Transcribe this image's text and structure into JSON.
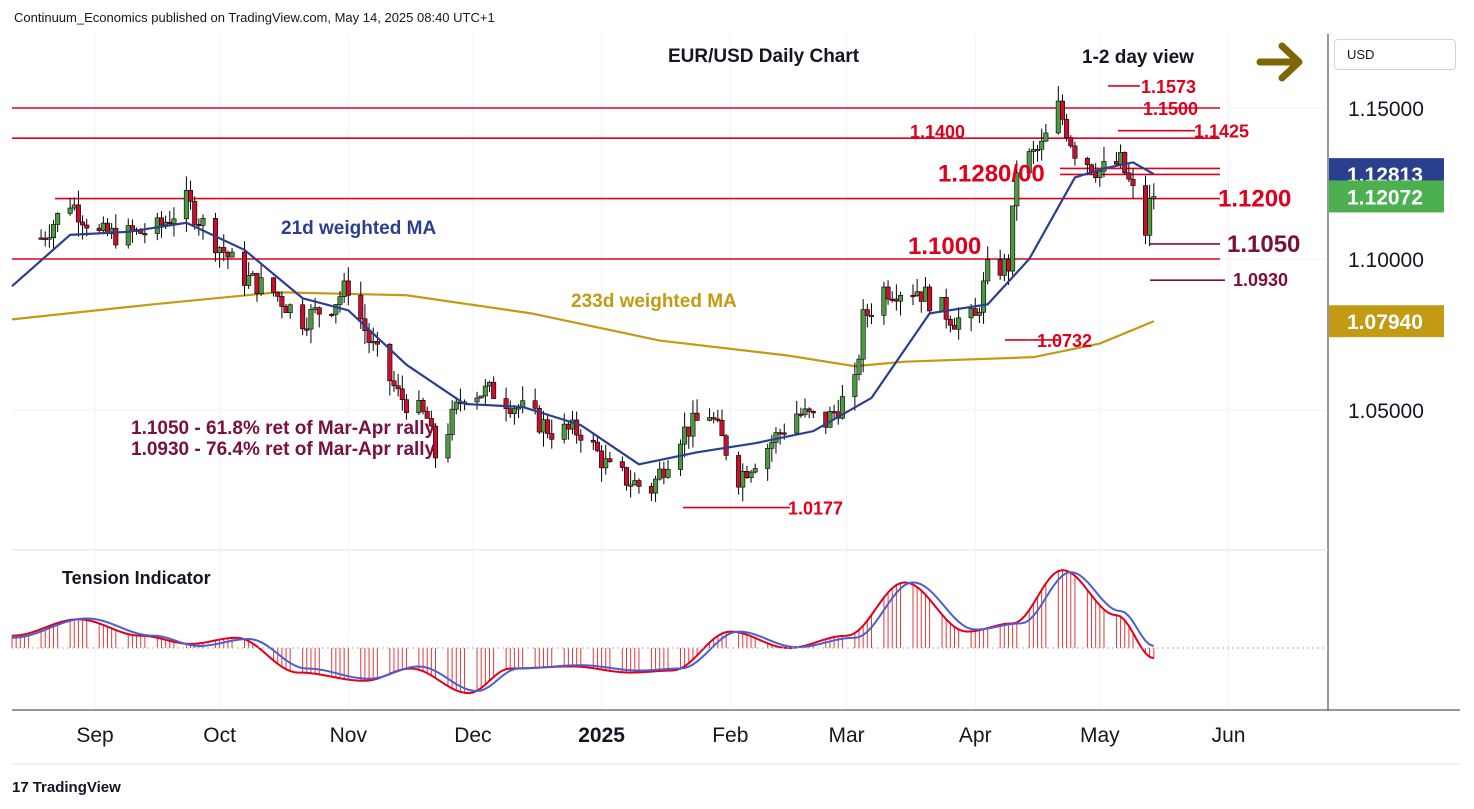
{
  "header": {
    "attribution": "Continuum_Economics published on TradingView.com, May 14, 2025 08:40 UTC+1"
  },
  "footer": {
    "brand": "TradingView",
    "logo_mark": "17"
  },
  "currency_button": "USD",
  "colors": {
    "resistance": "#e0001b",
    "support": "#7a1040",
    "ma21": "#2b3f8f",
    "ma233": "#c39a14",
    "up_candle": "#4c9a40",
    "down_candle": "#c8102e",
    "arrow": "#7d6508",
    "badge_ma21": "#2b3f8f",
    "badge_last": "#4caf50",
    "badge_ma233": "#c39a14"
  },
  "chart_data": {
    "type": "candlestick",
    "title": "EUR/USD Daily Chart",
    "view": "1-2 day view",
    "view_direction": "sideways (right arrow)",
    "y_axis": {
      "scale": "price",
      "ticks": [
        "1.15000",
        "1.10000",
        "1.05000"
      ],
      "range": [
        1.0,
        1.16
      ]
    },
    "x_axis": {
      "ticks": [
        "Sep",
        "Oct",
        "Nov",
        "Dec",
        "2025",
        "Feb",
        "Mar",
        "Apr",
        "May",
        "Jun"
      ]
    },
    "price_badges": [
      {
        "label": "1.12813",
        "series": "21d weighted MA"
      },
      {
        "label": "1.12072",
        "series": "last price"
      },
      {
        "label": "1.07940",
        "series": "233d weighted MA"
      }
    ],
    "horizontal_levels": [
      {
        "value": 1.15,
        "kind": "resistance"
      },
      {
        "value": 1.14,
        "kind": "resistance"
      },
      {
        "value": 1.128,
        "kind": "resistance"
      },
      {
        "value": 1.13,
        "kind": "resistance"
      },
      {
        "value": 1.12,
        "kind": "resistance"
      },
      {
        "value": 1.1,
        "kind": "resistance"
      },
      {
        "value": 1.105,
        "kind": "support"
      },
      {
        "value": 1.093,
        "kind": "support"
      },
      {
        "value": 1.0732,
        "kind": "support"
      },
      {
        "value": 1.0177,
        "kind": "support"
      },
      {
        "value": 1.1573,
        "kind": "resistance"
      },
      {
        "value": 1.1425,
        "kind": "resistance"
      }
    ],
    "level_labels": [
      {
        "text": "1.1573",
        "value": 1.1573,
        "color": "red"
      },
      {
        "text": "1.1500",
        "value": 1.15,
        "color": "red"
      },
      {
        "text": "1.1425",
        "value": 1.1425,
        "color": "red"
      },
      {
        "text": "1.1400",
        "value": 1.14,
        "color": "red"
      },
      {
        "text": "1.1280/00",
        "value": 1.129,
        "color": "red",
        "size": "large"
      },
      {
        "text": "1.1200",
        "value": 1.12,
        "color": "red",
        "size": "large"
      },
      {
        "text": "1.1000",
        "value": 1.1,
        "color": "red",
        "size": "large"
      },
      {
        "text": "1.1050",
        "value": 1.105,
        "color": "maroon",
        "size": "large"
      },
      {
        "text": "1.0930",
        "value": 1.093,
        "color": "maroon"
      },
      {
        "text": "1.0732",
        "value": 1.0732,
        "color": "red"
      },
      {
        "text": "1.0177",
        "value": 1.0177,
        "color": "red"
      }
    ],
    "annotations": [
      "21d weighted MA",
      "233d weighted MA",
      "1.1050 - 61.8% ret of Mar-Apr rally",
      "1.0930 - 76.4% ret of Mar-Apr rally"
    ],
    "price_series": {
      "name": "EUR/USD",
      "anchors": [
        [
          "2024-08-19",
          1.107
        ],
        [
          "2024-08-26",
          1.119
        ],
        [
          "2024-09-02",
          1.108
        ],
        [
          "2024-09-09",
          1.108
        ],
        [
          "2024-09-16",
          1.11
        ],
        [
          "2024-09-23",
          1.119
        ],
        [
          "2024-09-30",
          1.106
        ],
        [
          "2024-10-07",
          1.094
        ],
        [
          "2024-10-14",
          1.089
        ],
        [
          "2024-10-21",
          1.08
        ],
        [
          "2024-10-28",
          1.085
        ],
        [
          "2024-11-01",
          1.091
        ],
        [
          "2024-11-06",
          1.073
        ],
        [
          "2024-11-13",
          1.055
        ],
        [
          "2024-11-20",
          1.047
        ],
        [
          "2024-11-22",
          1.035
        ],
        [
          "2024-11-29",
          1.056
        ],
        [
          "2024-12-06",
          1.056
        ],
        [
          "2024-12-13",
          1.05
        ],
        [
          "2024-12-20",
          1.043
        ],
        [
          "2024-12-27",
          1.043
        ],
        [
          "2025-01-03",
          1.03
        ],
        [
          "2025-01-10",
          1.025
        ],
        [
          "2025-01-13",
          1.024
        ],
        [
          "2025-01-20",
          1.042
        ],
        [
          "2025-01-27",
          1.049
        ],
        [
          "2025-02-03",
          1.028
        ],
        [
          "2025-02-10",
          1.038
        ],
        [
          "2025-02-17",
          1.049
        ],
        [
          "2025-02-24",
          1.046
        ],
        [
          "2025-03-03",
          1.058
        ],
        [
          "2025-03-05",
          1.08
        ],
        [
          "2025-03-10",
          1.09
        ],
        [
          "2025-03-18",
          1.09
        ],
        [
          "2025-03-27",
          1.08
        ],
        [
          "2025-04-01",
          1.08
        ],
        [
          "2025-04-04",
          1.096
        ],
        [
          "2025-04-09",
          1.098
        ],
        [
          "2025-04-11",
          1.13
        ],
        [
          "2025-04-17",
          1.137
        ],
        [
          "2025-04-21",
          1.15
        ],
        [
          "2025-04-25",
          1.136
        ],
        [
          "2025-05-01",
          1.129
        ],
        [
          "2025-05-06",
          1.132
        ],
        [
          "2025-05-09",
          1.122
        ],
        [
          "2025-05-12",
          1.109
        ],
        [
          "2025-05-13",
          1.118
        ],
        [
          "2025-05-14",
          1.1207
        ]
      ]
    },
    "series": [
      {
        "name": "21d weighted MA",
        "values": [
          [
            "2024-08-12",
            1.091
          ],
          [
            "2024-08-26",
            1.108
          ],
          [
            "2024-09-09",
            1.109
          ],
          [
            "2024-09-23",
            1.112
          ],
          [
            "2024-10-07",
            1.103
          ],
          [
            "2024-10-21",
            1.087
          ],
          [
            "2024-11-01",
            1.083
          ],
          [
            "2024-11-15",
            1.065
          ],
          [
            "2024-11-29",
            1.052
          ],
          [
            "2024-12-13",
            1.051
          ],
          [
            "2024-12-27",
            1.045
          ],
          [
            "2025-01-10",
            1.032
          ],
          [
            "2025-01-24",
            1.036
          ],
          [
            "2025-02-07",
            1.039
          ],
          [
            "2025-02-21",
            1.043
          ],
          [
            "2025-03-07",
            1.054
          ],
          [
            "2025-03-21",
            1.082
          ],
          [
            "2025-04-04",
            1.085
          ],
          [
            "2025-04-14",
            1.1
          ],
          [
            "2025-04-25",
            1.127
          ],
          [
            "2025-05-02",
            1.13
          ],
          [
            "2025-05-09",
            1.132
          ],
          [
            "2025-05-14",
            1.1281
          ]
        ]
      },
      {
        "name": "233d weighted MA",
        "values": [
          [
            "2024-08-12",
            1.08
          ],
          [
            "2024-09-15",
            1.085
          ],
          [
            "2024-10-15",
            1.089
          ],
          [
            "2024-11-15",
            1.088
          ],
          [
            "2024-12-15",
            1.082
          ],
          [
            "2025-01-15",
            1.073
          ],
          [
            "2025-02-15",
            1.068
          ],
          [
            "2025-03-03",
            1.0645
          ],
          [
            "2025-03-15",
            1.066
          ],
          [
            "2025-04-15",
            1.0675
          ],
          [
            "2025-05-01",
            1.072
          ],
          [
            "2025-05-14",
            1.0794
          ]
        ]
      }
    ],
    "tension_indicator": {
      "title": "Tension Indicator",
      "zero_value": 0,
      "values": [
        [
          "2024-08-12",
          0.3
        ],
        [
          "2024-08-28",
          0.7
        ],
        [
          "2024-09-12",
          0.3
        ],
        [
          "2024-09-24",
          0.1
        ],
        [
          "2024-10-05",
          0.25
        ],
        [
          "2024-10-20",
          -0.6
        ],
        [
          "2024-11-05",
          -0.8
        ],
        [
          "2024-11-16",
          -0.5
        ],
        [
          "2024-11-30",
          -1.1
        ],
        [
          "2024-12-10",
          -0.5
        ],
        [
          "2024-12-25",
          -0.45
        ],
        [
          "2025-01-08",
          -0.6
        ],
        [
          "2025-01-18",
          -0.55
        ],
        [
          "2025-02-01",
          0.4
        ],
        [
          "2025-02-15",
          0.0
        ],
        [
          "2025-03-01",
          0.3
        ],
        [
          "2025-03-15",
          1.6
        ],
        [
          "2025-03-30",
          0.4
        ],
        [
          "2025-04-10",
          0.6
        ],
        [
          "2025-04-22",
          1.9
        ],
        [
          "2025-05-05",
          0.8
        ],
        [
          "2025-05-14",
          -0.25
        ]
      ],
      "signal": [
        [
          "2024-08-12",
          0.25
        ],
        [
          "2024-08-30",
          0.72
        ],
        [
          "2024-09-15",
          0.3
        ],
        [
          "2024-09-26",
          0.05
        ],
        [
          "2024-10-08",
          0.22
        ],
        [
          "2024-10-22",
          -0.5
        ],
        [
          "2024-11-06",
          -0.75
        ],
        [
          "2024-11-18",
          -0.45
        ],
        [
          "2024-12-02",
          -1.05
        ],
        [
          "2024-12-12",
          -0.5
        ],
        [
          "2024-12-27",
          -0.42
        ],
        [
          "2025-01-10",
          -0.55
        ],
        [
          "2025-01-20",
          -0.5
        ],
        [
          "2025-02-03",
          0.4
        ],
        [
          "2025-02-17",
          0.02
        ],
        [
          "2025-03-03",
          0.25
        ],
        [
          "2025-03-17",
          1.6
        ],
        [
          "2025-04-01",
          0.45
        ],
        [
          "2025-04-12",
          0.6
        ],
        [
          "2025-04-24",
          1.85
        ],
        [
          "2025-05-06",
          0.9
        ],
        [
          "2025-05-14",
          0.05
        ]
      ]
    }
  }
}
